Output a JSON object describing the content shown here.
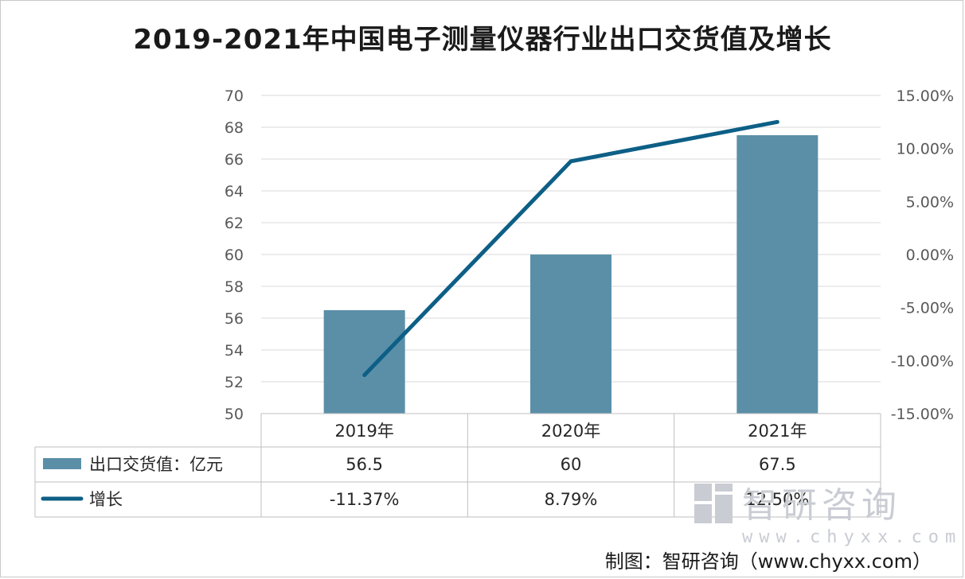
{
  "chart_data": {
    "type": "bar",
    "title": "2019-2021年中国电子测量仪器行业出口交货值及增长",
    "categories": [
      "2019年",
      "2020年",
      "2021年"
    ],
    "series": [
      {
        "name": "出口交货值：亿元",
        "type": "bar",
        "axis": "left",
        "values": [
          56.5,
          60,
          67.5
        ],
        "value_labels": [
          "56.5",
          "60",
          "67.5"
        ],
        "color": "#5b8fa8"
      },
      {
        "name": "增长",
        "type": "line",
        "axis": "right",
        "values": [
          -11.37,
          8.79,
          12.5
        ],
        "value_labels": [
          "-11.37%",
          "8.79%",
          "12.50%"
        ],
        "color": "#0d5f86"
      }
    ],
    "left_axis": {
      "ylim": [
        50,
        70
      ],
      "ticks": [
        "50",
        "52",
        "54",
        "56",
        "58",
        "60",
        "62",
        "64",
        "66",
        "68",
        "70"
      ]
    },
    "right_axis": {
      "ylim": [
        -15,
        15
      ],
      "ticks": [
        "-15.00%",
        "-10.00%",
        "-5.00%",
        "0.00%",
        "5.00%",
        "10.00%",
        "15.00%"
      ]
    },
    "grid": true,
    "legend": "data-table"
  },
  "watermark": {
    "brand": "智研咨询",
    "url": "www.chyxx.com"
  },
  "source": "制图：智研咨询（www.chyxx.com）"
}
